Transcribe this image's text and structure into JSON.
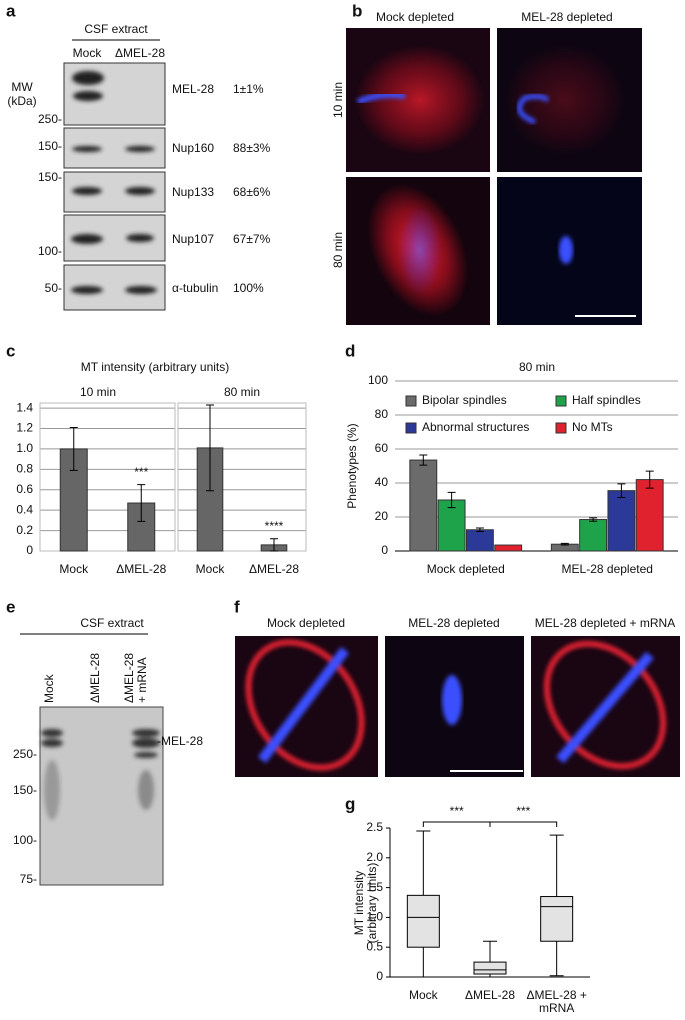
{
  "panel_labels": [
    "a",
    "b",
    "c",
    "d",
    "e",
    "f",
    "g"
  ],
  "blot_a": {
    "header": "CSF extract",
    "lanes": [
      "Mock",
      "ΔMEL-28"
    ],
    "mw_title": [
      "MW",
      "(kDa)"
    ],
    "mw_markers": [
      "250-",
      "150-",
      "150-",
      "100-",
      "50-"
    ],
    "rows": [
      {
        "protein": "MEL-28",
        "level": "1±1%"
      },
      {
        "protein": "Nup160",
        "level": "88±3%"
      },
      {
        "protein": "Nup133",
        "level": "68±6%"
      },
      {
        "protein": "Nup107",
        "level": "67±7%"
      },
      {
        "protein": "α-tubulin",
        "level": "100%"
      }
    ]
  },
  "micro_b": {
    "columns": [
      "Mock depleted",
      "MEL-28 depleted"
    ],
    "rows": [
      "10 min",
      "80 min"
    ]
  },
  "blot_e": {
    "header": "CSF extract",
    "lanes": [
      [
        "Mock"
      ],
      [
        "ΔMEL-28"
      ],
      [
        "ΔMEL-28",
        "+ mRNA"
      ]
    ],
    "band_label": "-MEL-28",
    "mw_markers": [
      "250-",
      "150-",
      "100-",
      "75-"
    ]
  },
  "micro_f": {
    "columns": [
      "Mock depleted",
      "MEL-28 depleted",
      "MEL-28 depleted + mRNA"
    ]
  },
  "chart_data": [
    {
      "type": "bar",
      "title": "MT intensity (arbitrary units)",
      "subtitle": "10 min",
      "categories": [
        [
          "Mock"
        ],
        [
          "ΔMEL-28"
        ]
      ],
      "values": [
        1.0,
        0.47
      ],
      "errors": [
        0.21,
        0.18
      ],
      "significance": [
        null,
        "***"
      ],
      "color": "#666666",
      "ylim": [
        0,
        1.45
      ],
      "yticks": [
        0,
        0.2,
        0.4,
        0.6,
        0.8,
        {
          "value": 1,
          "label": "1.0"
        },
        1.2,
        1.4
      ],
      "grid": true,
      "show_tick_labels": true
    },
    {
      "type": "bar",
      "subtitle": "80 min",
      "categories": [
        [
          "Mock"
        ],
        [
          "ΔMEL-28"
        ]
      ],
      "values": [
        1.01,
        0.06
      ],
      "errors": [
        0.42,
        0.06
      ],
      "significance": [
        null,
        "****"
      ],
      "color": "#666666",
      "ylim": [
        0,
        1.45
      ],
      "yticks": [
        0,
        0.2,
        0.4,
        0.6,
        0.8,
        {
          "value": 1,
          "label": "1.0"
        },
        1.2,
        1.4
      ],
      "grid": true,
      "show_tick_labels": false
    },
    {
      "type": "grouped_bar",
      "title": "80 min",
      "ylabel": "Phenotypes (%)",
      "categories": [
        [
          "Mock depleted"
        ],
        [
          "MEL-28 depleted"
        ]
      ],
      "series": [
        {
          "name": "Bipolar spindles",
          "color": "#6b6b6b",
          "values": [
            53.5,
            4
          ],
          "errors": [
            3,
            0.5
          ]
        },
        {
          "name": "Half spindles",
          "color": "#1fa34a",
          "values": [
            30,
            18.5
          ],
          "errors": [
            4.5,
            1
          ]
        },
        {
          "name": "Abnormal structures",
          "color": "#2b3a99",
          "values": [
            12.5,
            35.5
          ],
          "errors": [
            1,
            4
          ]
        },
        {
          "name": "No MTs",
          "color": "#e0222e",
          "values": [
            3.5,
            42
          ],
          "errors": [
            0,
            5
          ]
        }
      ],
      "ylim": [
        0,
        100
      ],
      "yticks": [
        0,
        20,
        40,
        60,
        80,
        100
      ],
      "grid": true,
      "legend": "inside-top"
    },
    {
      "type": "box",
      "ylabel": [
        "MT intensity",
        "(arbitrary units)"
      ],
      "categories": [
        [
          "Mock"
        ],
        [
          "ΔMEL-28"
        ],
        [
          "ΔMEL-28 +",
          "mRNA"
        ]
      ],
      "color": "#e3e3e3",
      "boxes": [
        {
          "min": 0,
          "q1": 0.5,
          "median": 1.0,
          "q3": 1.37,
          "max": 2.45
        },
        {
          "min": 0,
          "q1": 0.05,
          "median": 0.12,
          "q3": 0.25,
          "max": 0.6
        },
        {
          "min": 0.02,
          "q1": 0.6,
          "median": 1.18,
          "q3": 1.35,
          "max": 2.38
        }
      ],
      "comparisons": [
        {
          "pair": [
            0,
            1
          ],
          "label": "***"
        },
        {
          "pair": [
            1,
            2
          ],
          "label": "***"
        }
      ],
      "ylim": [
        0,
        2.5
      ],
      "yticks": [
        0,
        0.5,
        {
          "value": 1,
          "label": "1.0"
        },
        1.5,
        {
          "value": 2,
          "label": "2.0"
        },
        2.5
      ],
      "grid": false
    }
  ]
}
